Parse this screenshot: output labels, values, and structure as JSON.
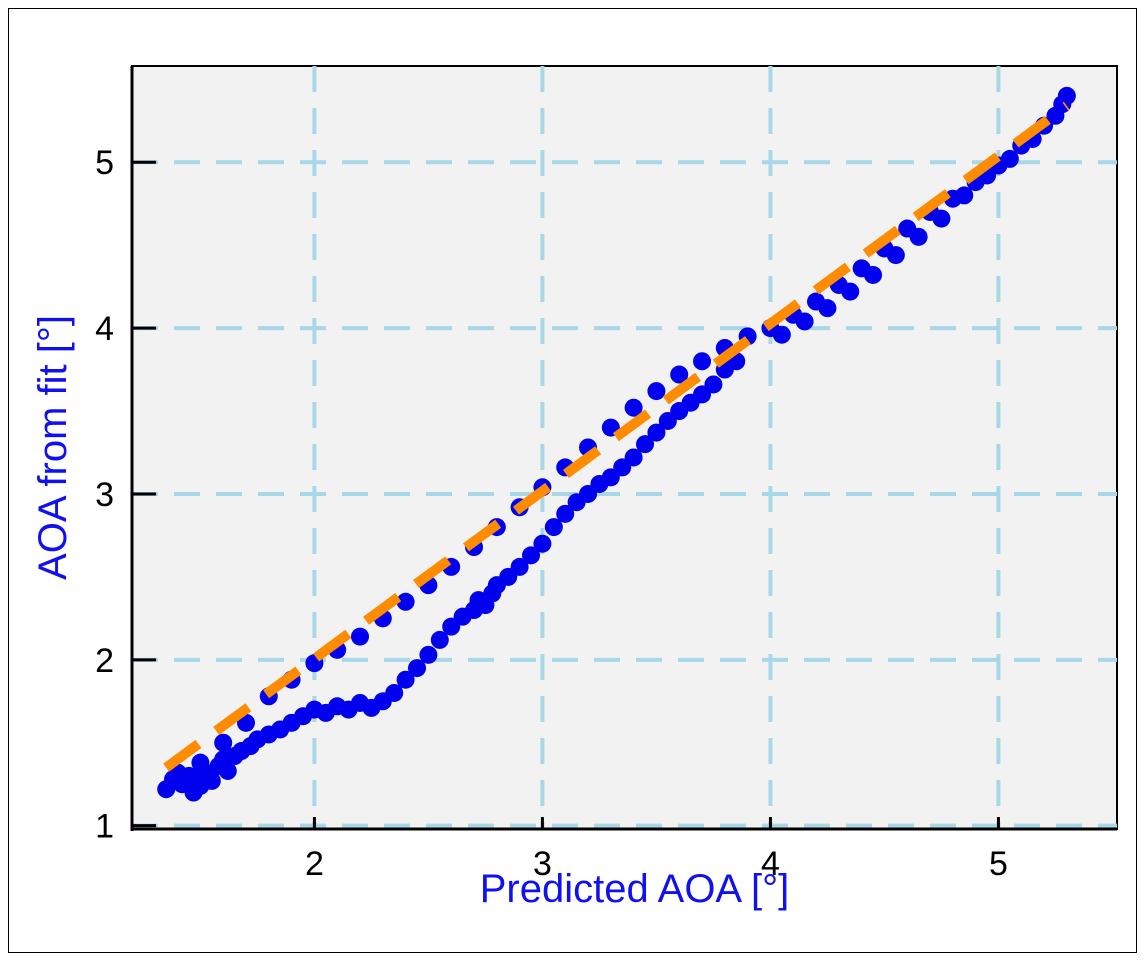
{
  "chart_data": {
    "type": "scatter",
    "title": "",
    "xlabel": "Predicted AOA [°]",
    "ylabel": "AOA from fit [°]",
    "xlim": [
      1.2,
      5.52
    ],
    "ylim": [
      0.98,
      5.58
    ],
    "xticks": [
      2,
      3,
      4,
      5
    ],
    "yticks": [
      1,
      2,
      3,
      4,
      5
    ],
    "xtick_labels": [
      "2",
      "3",
      "4",
      "5"
    ],
    "ytick_labels": [
      "1",
      "2",
      "3",
      "4",
      "5"
    ],
    "grid": true,
    "grid_style": "dashed",
    "colors": {
      "points": "#0000ee",
      "fit_line": "#ff8c00",
      "grid": "#a8d8e8",
      "plot_bg": "#f2f2f2",
      "axis_label": "#1010f0"
    },
    "series": [
      {
        "type": "scatter",
        "points": [
          [
            1.35,
            1.22
          ],
          [
            1.38,
            1.28
          ],
          [
            1.42,
            1.25
          ],
          [
            1.45,
            1.3
          ],
          [
            1.47,
            1.2
          ],
          [
            1.5,
            1.24
          ],
          [
            1.52,
            1.32
          ],
          [
            1.55,
            1.27
          ],
          [
            1.58,
            1.36
          ],
          [
            1.6,
            1.4
          ],
          [
            1.62,
            1.33
          ],
          [
            1.65,
            1.42
          ],
          [
            1.68,
            1.45
          ],
          [
            1.72,
            1.48
          ],
          [
            1.75,
            1.52
          ],
          [
            1.8,
            1.55
          ],
          [
            1.85,
            1.58
          ],
          [
            1.9,
            1.62
          ],
          [
            1.95,
            1.66
          ],
          [
            2.0,
            1.7
          ],
          [
            2.05,
            1.68
          ],
          [
            2.1,
            1.72
          ],
          [
            2.15,
            1.7
          ],
          [
            2.2,
            1.74
          ],
          [
            2.25,
            1.71
          ],
          [
            2.3,
            1.75
          ],
          [
            2.35,
            1.8
          ],
          [
            2.4,
            1.88
          ],
          [
            2.45,
            1.95
          ],
          [
            2.5,
            2.03
          ],
          [
            2.55,
            2.12
          ],
          [
            2.6,
            2.2
          ],
          [
            2.65,
            2.26
          ],
          [
            2.7,
            2.3
          ],
          [
            2.72,
            2.36
          ],
          [
            2.75,
            2.33
          ],
          [
            2.78,
            2.4
          ],
          [
            2.8,
            2.45
          ],
          [
            2.85,
            2.5
          ],
          [
            2.9,
            2.56
          ],
          [
            2.95,
            2.63
          ],
          [
            3.0,
            2.7
          ],
          [
            3.05,
            2.8
          ],
          [
            3.1,
            2.88
          ],
          [
            3.15,
            2.95
          ],
          [
            3.2,
            3.0
          ],
          [
            3.25,
            3.06
          ],
          [
            3.3,
            3.1
          ],
          [
            3.35,
            3.16
          ],
          [
            3.4,
            3.22
          ],
          [
            3.45,
            3.3
          ],
          [
            3.5,
            3.37
          ],
          [
            3.55,
            3.44
          ],
          [
            3.6,
            3.5
          ],
          [
            3.65,
            3.55
          ],
          [
            3.7,
            3.6
          ],
          [
            3.75,
            3.66
          ],
          [
            3.8,
            3.75
          ],
          [
            3.85,
            3.8
          ],
          [
            1.4,
            1.32
          ],
          [
            1.5,
            1.38
          ],
          [
            1.6,
            1.5
          ],
          [
            1.7,
            1.62
          ],
          [
            1.8,
            1.78
          ],
          [
            1.9,
            1.88
          ],
          [
            2.0,
            1.98
          ],
          [
            2.1,
            2.06
          ],
          [
            2.2,
            2.14
          ],
          [
            2.3,
            2.25
          ],
          [
            2.4,
            2.35
          ],
          [
            2.5,
            2.45
          ],
          [
            2.6,
            2.56
          ],
          [
            2.7,
            2.68
          ],
          [
            2.8,
            2.8
          ],
          [
            2.9,
            2.92
          ],
          [
            3.0,
            3.04
          ],
          [
            3.1,
            3.16
          ],
          [
            3.2,
            3.28
          ],
          [
            3.3,
            3.4
          ],
          [
            3.4,
            3.52
          ],
          [
            3.5,
            3.62
          ],
          [
            3.6,
            3.72
          ],
          [
            3.7,
            3.8
          ],
          [
            3.8,
            3.88
          ],
          [
            3.9,
            3.95
          ],
          [
            4.0,
            4.0
          ],
          [
            4.1,
            4.08
          ],
          [
            4.2,
            4.16
          ],
          [
            4.3,
            4.26
          ],
          [
            4.4,
            4.36
          ],
          [
            4.5,
            4.48
          ],
          [
            4.6,
            4.6
          ],
          [
            4.7,
            4.7
          ],
          [
            4.8,
            4.78
          ],
          [
            4.9,
            4.88
          ],
          [
            5.0,
            4.98
          ],
          [
            5.1,
            5.1
          ],
          [
            5.2,
            5.22
          ],
          [
            5.28,
            5.35
          ],
          [
            5.3,
            5.4
          ],
          [
            4.05,
            3.96
          ],
          [
            4.15,
            4.04
          ],
          [
            4.25,
            4.12
          ],
          [
            4.35,
            4.22
          ],
          [
            4.45,
            4.32
          ],
          [
            4.55,
            4.44
          ],
          [
            4.65,
            4.55
          ],
          [
            4.75,
            4.66
          ],
          [
            4.85,
            4.8
          ],
          [
            4.95,
            4.92
          ],
          [
            5.05,
            5.02
          ],
          [
            5.15,
            5.14
          ],
          [
            5.25,
            5.28
          ]
        ]
      },
      {
        "type": "line",
        "style": "dashed",
        "points": [
          [
            1.35,
            1.35
          ],
          [
            5.3,
            5.34
          ]
        ]
      }
    ]
  }
}
